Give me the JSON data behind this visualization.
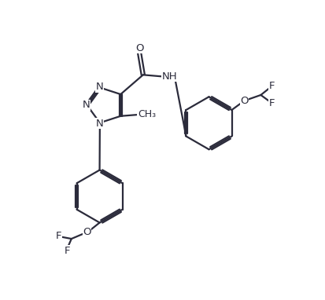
{
  "bg_color": "#ffffff",
  "line_color": "#2b2b3b",
  "line_width": 1.6,
  "font_size": 9.5,
  "figsize": [
    4.13,
    3.82
  ],
  "dpi": 100,
  "xlim": [
    0,
    10
  ],
  "ylim": [
    0,
    10
  ]
}
